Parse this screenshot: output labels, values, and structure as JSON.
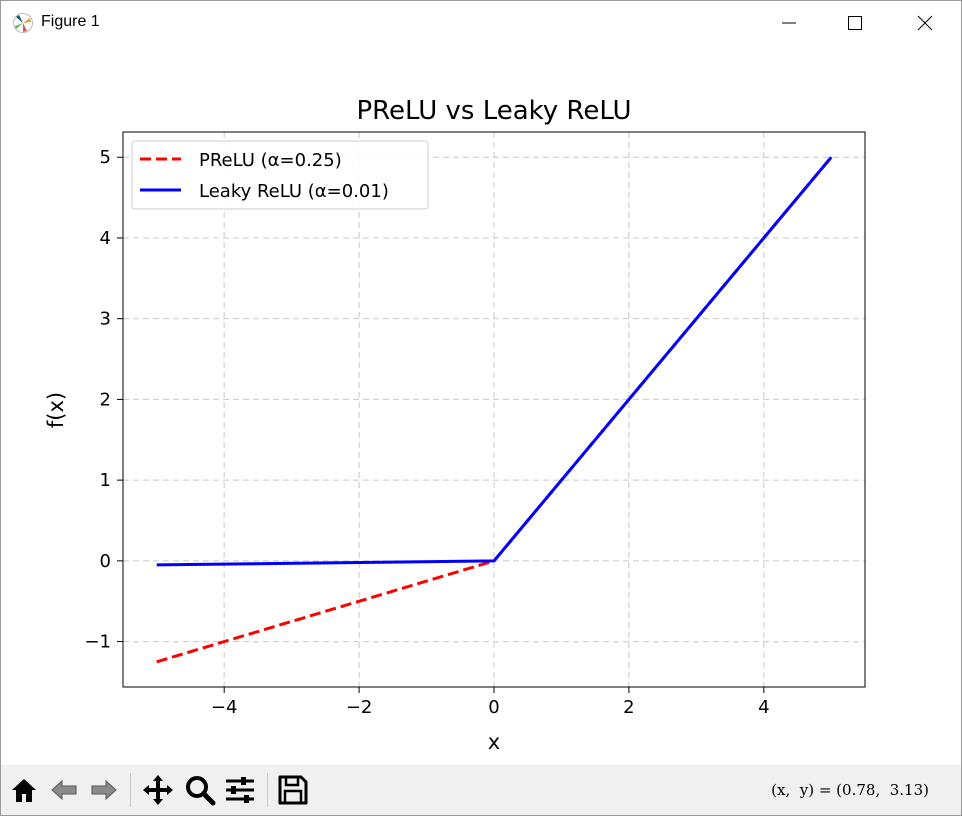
{
  "window": {
    "title": "Figure 1",
    "icon": "matplotlib-icon",
    "controls": [
      "minimize-icon",
      "maximize-icon",
      "close-icon"
    ]
  },
  "toolbar": {
    "buttons": [
      "home-icon",
      "back-arrow-icon",
      "forward-arrow-icon",
      "pan-icon",
      "zoom-icon",
      "configure-subplots-icon",
      "save-icon"
    ],
    "coords_text": "(x,  y) = (0.78,  3.13)"
  },
  "chart_data": {
    "type": "line",
    "title": "PReLU vs Leaky ReLU",
    "xlabel": "x",
    "ylabel": "f(x)",
    "xlim": [
      -5.5,
      5.5
    ],
    "ylim": [
      -1.5625,
      5.3125
    ],
    "xticks": [
      -4,
      -2,
      0,
      2,
      4
    ],
    "yticks": [
      -1,
      0,
      1,
      2,
      3,
      4,
      5
    ],
    "xtick_labels": [
      "−4",
      "−2",
      "0",
      "2",
      "4"
    ],
    "ytick_labels": [
      "−1",
      "0",
      "1",
      "2",
      "3",
      "4",
      "5"
    ],
    "grid": true,
    "legend_position": "top-left",
    "series": [
      {
        "name": "PReLU (α=0.25)",
        "color": "#ff0000",
        "style": "dashed",
        "x": [
          -5,
          0,
          5
        ],
        "y": [
          -1.25,
          0,
          5
        ]
      },
      {
        "name": "Leaky ReLU (α=0.01)",
        "color": "#0000ff",
        "style": "solid",
        "x": [
          -5,
          0,
          5
        ],
        "y": [
          -0.05,
          0,
          5
        ]
      }
    ]
  }
}
